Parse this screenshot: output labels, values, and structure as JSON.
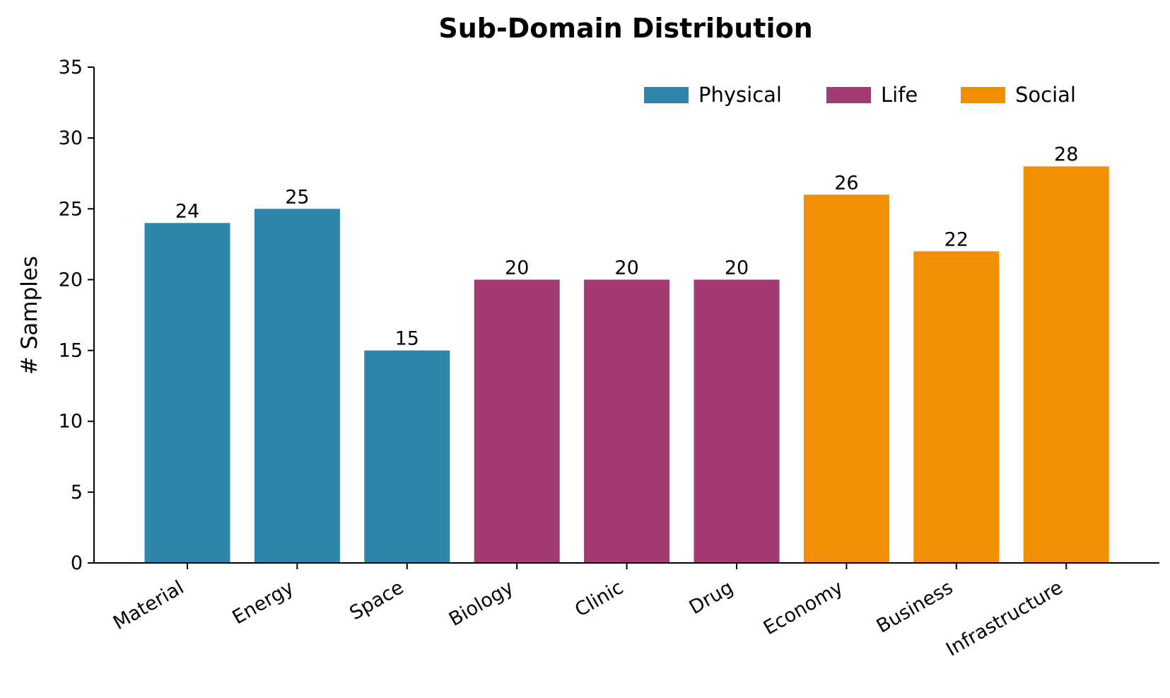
{
  "chart_data": {
    "type": "bar",
    "title": "Sub-Domain Distribution",
    "xlabel": "",
    "ylabel": "# Samples",
    "ylim": [
      0,
      35
    ],
    "yticks": [
      0,
      5,
      10,
      15,
      20,
      25,
      30,
      35
    ],
    "grid": false,
    "legend_position": "top-right",
    "categories": [
      "Material",
      "Energy",
      "Space",
      "Biology",
      "Clinic",
      "Drug",
      "Economy",
      "Business",
      "Infrastructure"
    ],
    "values": [
      24,
      25,
      15,
      20,
      20,
      20,
      26,
      22,
      28
    ],
    "groups": [
      "Physical",
      "Physical",
      "Physical",
      "Life",
      "Life",
      "Life",
      "Social",
      "Social",
      "Social"
    ],
    "legend": [
      {
        "name": "Physical",
        "color": "#2E86AB"
      },
      {
        "name": "Life",
        "color": "#A23B72"
      },
      {
        "name": "Social",
        "color": "#F18F01"
      }
    ]
  }
}
